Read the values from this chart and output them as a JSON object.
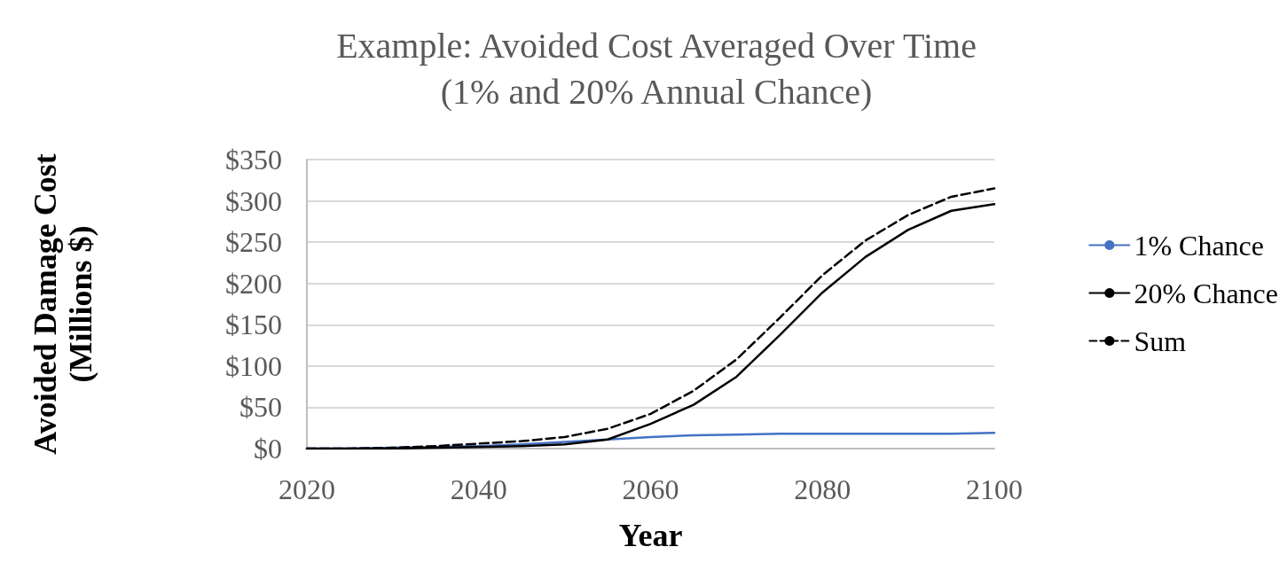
{
  "chart_data": {
    "type": "line",
    "title": "Example: Avoided Cost Averaged Over Time\n(1% and 20% Annual Chance)",
    "xlabel": "Year",
    "ylabel": "Avoided Damage Cost\n(Millions $)",
    "x": [
      2020,
      2025,
      2030,
      2035,
      2040,
      2045,
      2050,
      2055,
      2060,
      2065,
      2070,
      2075,
      2080,
      2085,
      2090,
      2095,
      2100
    ],
    "series": [
      {
        "name": "1% Chance",
        "color": "#4472c4",
        "values": [
          0,
          0,
          1,
          2,
          3,
          5,
          8,
          11,
          14,
          16,
          17,
          18,
          18,
          18,
          18,
          18,
          19
        ]
      },
      {
        "name": "20% Chance",
        "color": "#000000",
        "values": [
          0,
          0,
          0,
          1,
          2,
          3,
          5,
          11,
          30,
          53,
          87,
          137,
          189,
          232,
          265,
          288,
          296
        ]
      },
      {
        "name": "Sum",
        "color": "#000000",
        "line_style": "dashed",
        "values": [
          0,
          0,
          1,
          3,
          6,
          9,
          14,
          24,
          42,
          70,
          108,
          158,
          210,
          252,
          283,
          305,
          315
        ]
      }
    ],
    "xlim": [
      2020,
      2100
    ],
    "xticks": [
      2020,
      2040,
      2060,
      2080,
      2100
    ],
    "ylim": [
      0,
      350
    ],
    "yticks": [
      {
        "value": 0,
        "label": "$0"
      },
      {
        "value": 50,
        "label": "$50"
      },
      {
        "value": 100,
        "label": "$100"
      },
      {
        "value": 150,
        "label": "$150"
      },
      {
        "value": 200,
        "label": "$200"
      },
      {
        "value": 250,
        "label": "$250"
      },
      {
        "value": 300,
        "label": "$300"
      },
      {
        "value": 350,
        "label": "$350"
      }
    ],
    "grid": "y",
    "legend": "right",
    "marker": "none",
    "line_style": "solid"
  }
}
